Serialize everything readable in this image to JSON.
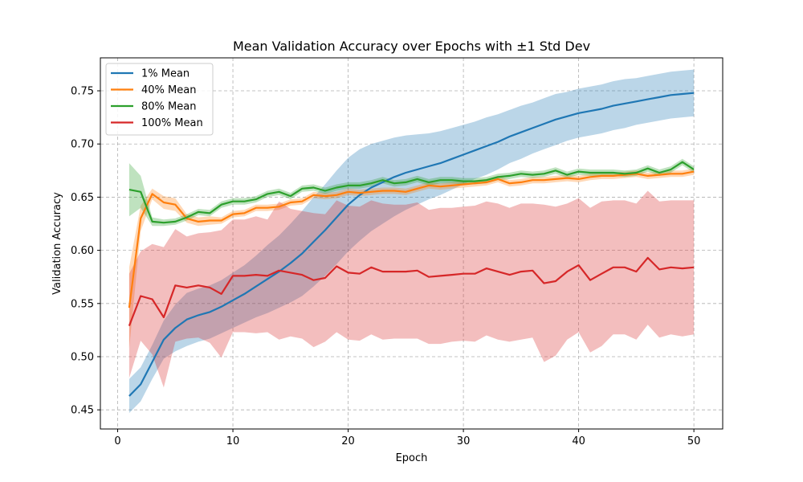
{
  "chart_data": {
    "type": "line",
    "title": "Mean Validation Accuracy over Epochs with ±1 Std Dev",
    "xlabel": "Epoch",
    "ylabel": "Validation Accuracy",
    "xlim": [
      -1.5,
      52.5
    ],
    "ylim": [
      0.432,
      0.781
    ],
    "xticks": [
      0,
      10,
      20,
      30,
      40,
      50
    ],
    "yticks": [
      0.45,
      0.5,
      0.55,
      0.6,
      0.65,
      0.7,
      0.75
    ],
    "ytick_labels": [
      "0.45",
      "0.50",
      "0.55",
      "0.60",
      "0.65",
      "0.70",
      "0.75"
    ],
    "grid": true,
    "legend_position": "top-left",
    "x": [
      1,
      2,
      3,
      4,
      5,
      6,
      7,
      8,
      9,
      10,
      11,
      12,
      13,
      14,
      15,
      16,
      17,
      18,
      19,
      20,
      21,
      22,
      23,
      24,
      25,
      26,
      27,
      28,
      29,
      30,
      31,
      32,
      33,
      34,
      35,
      36,
      37,
      38,
      39,
      40,
      41,
      42,
      43,
      44,
      45,
      46,
      47,
      48,
      49,
      50
    ],
    "series": [
      {
        "name": "1% Mean",
        "color": "#1f77b4",
        "values": [
          0.463,
          0.474,
          0.495,
          0.516,
          0.527,
          0.535,
          0.539,
          0.542,
          0.547,
          0.553,
          0.559,
          0.566,
          0.573,
          0.58,
          0.588,
          0.597,
          0.608,
          0.619,
          0.631,
          0.643,
          0.652,
          0.659,
          0.664,
          0.669,
          0.673,
          0.676,
          0.679,
          0.682,
          0.686,
          0.69,
          0.694,
          0.698,
          0.702,
          0.707,
          0.711,
          0.715,
          0.719,
          0.723,
          0.726,
          0.729,
          0.731,
          0.733,
          0.736,
          0.738,
          0.74,
          0.742,
          0.744,
          0.746,
          0.747,
          0.748
        ],
        "std": [
          0.016,
          0.016,
          0.016,
          0.018,
          0.022,
          0.025,
          0.025,
          0.025,
          0.025,
          0.026,
          0.027,
          0.029,
          0.032,
          0.034,
          0.037,
          0.04,
          0.042,
          0.043,
          0.044,
          0.044,
          0.043,
          0.041,
          0.039,
          0.037,
          0.035,
          0.033,
          0.031,
          0.03,
          0.029,
          0.028,
          0.027,
          0.027,
          0.026,
          0.025,
          0.025,
          0.024,
          0.024,
          0.024,
          0.023,
          0.023,
          0.023,
          0.023,
          0.023,
          0.023,
          0.022,
          0.022,
          0.022,
          0.022,
          0.022,
          0.022
        ]
      },
      {
        "name": "40% Mean",
        "color": "#ff7f0e",
        "values": [
          0.546,
          0.63,
          0.653,
          0.645,
          0.643,
          0.63,
          0.627,
          0.628,
          0.628,
          0.634,
          0.635,
          0.64,
          0.64,
          0.641,
          0.645,
          0.646,
          0.652,
          0.651,
          0.652,
          0.655,
          0.654,
          0.655,
          0.656,
          0.656,
          0.655,
          0.658,
          0.661,
          0.66,
          0.661,
          0.662,
          0.663,
          0.664,
          0.667,
          0.663,
          0.664,
          0.666,
          0.666,
          0.667,
          0.668,
          0.667,
          0.669,
          0.67,
          0.67,
          0.671,
          0.672,
          0.67,
          0.671,
          0.672,
          0.672,
          0.674
        ],
        "std": [
          0.038,
          0.012,
          0.005,
          0.006,
          0.006,
          0.004,
          0.004,
          0.004,
          0.003,
          0.003,
          0.003,
          0.003,
          0.003,
          0.003,
          0.003,
          0.003,
          0.003,
          0.003,
          0.003,
          0.003,
          0.003,
          0.003,
          0.003,
          0.003,
          0.003,
          0.003,
          0.003,
          0.003,
          0.003,
          0.003,
          0.003,
          0.003,
          0.003,
          0.003,
          0.003,
          0.003,
          0.003,
          0.003,
          0.003,
          0.003,
          0.003,
          0.003,
          0.003,
          0.003,
          0.003,
          0.003,
          0.003,
          0.003,
          0.003,
          0.003
        ]
      },
      {
        "name": "80% Mean",
        "color": "#2ca02c",
        "values": [
          0.657,
          0.655,
          0.627,
          0.626,
          0.627,
          0.631,
          0.636,
          0.635,
          0.643,
          0.646,
          0.646,
          0.648,
          0.653,
          0.655,
          0.651,
          0.658,
          0.659,
          0.656,
          0.659,
          0.661,
          0.661,
          0.663,
          0.666,
          0.663,
          0.664,
          0.667,
          0.664,
          0.666,
          0.666,
          0.665,
          0.665,
          0.666,
          0.669,
          0.67,
          0.672,
          0.671,
          0.672,
          0.675,
          0.671,
          0.674,
          0.673,
          0.673,
          0.673,
          0.672,
          0.673,
          0.677,
          0.673,
          0.676,
          0.683,
          0.676
        ],
        "std": [
          0.025,
          0.015,
          0.004,
          0.003,
          0.003,
          0.003,
          0.003,
          0.003,
          0.003,
          0.003,
          0.003,
          0.003,
          0.003,
          0.003,
          0.003,
          0.003,
          0.003,
          0.003,
          0.003,
          0.003,
          0.003,
          0.003,
          0.003,
          0.003,
          0.003,
          0.003,
          0.003,
          0.003,
          0.003,
          0.003,
          0.003,
          0.003,
          0.003,
          0.003,
          0.003,
          0.003,
          0.003,
          0.003,
          0.003,
          0.003,
          0.003,
          0.003,
          0.003,
          0.003,
          0.003,
          0.003,
          0.003,
          0.003,
          0.003,
          0.003
        ]
      },
      {
        "name": "100% Mean",
        "color": "#d62728",
        "values": [
          0.529,
          0.557,
          0.554,
          0.537,
          0.567,
          0.565,
          0.567,
          0.565,
          0.559,
          0.576,
          0.576,
          0.577,
          0.576,
          0.581,
          0.579,
          0.577,
          0.572,
          0.574,
          0.585,
          0.579,
          0.578,
          0.584,
          0.58,
          0.58,
          0.58,
          0.581,
          0.575,
          0.576,
          0.577,
          0.578,
          0.578,
          0.583,
          0.58,
          0.577,
          0.58,
          0.581,
          0.569,
          0.571,
          0.58,
          0.586,
          0.572,
          0.578,
          0.584,
          0.584,
          0.58,
          0.593,
          0.582,
          0.584,
          0.583,
          0.584
        ],
        "std": [
          0.049,
          0.042,
          0.052,
          0.066,
          0.053,
          0.048,
          0.049,
          0.052,
          0.06,
          0.053,
          0.053,
          0.055,
          0.053,
          0.065,
          0.06,
          0.06,
          0.063,
          0.06,
          0.062,
          0.063,
          0.063,
          0.063,
          0.064,
          0.063,
          0.063,
          0.064,
          0.063,
          0.064,
          0.063,
          0.063,
          0.064,
          0.063,
          0.064,
          0.063,
          0.064,
          0.063,
          0.074,
          0.07,
          0.064,
          0.063,
          0.068,
          0.068,
          0.063,
          0.063,
          0.064,
          0.063,
          0.064,
          0.063,
          0.064,
          0.063
        ]
      }
    ]
  }
}
